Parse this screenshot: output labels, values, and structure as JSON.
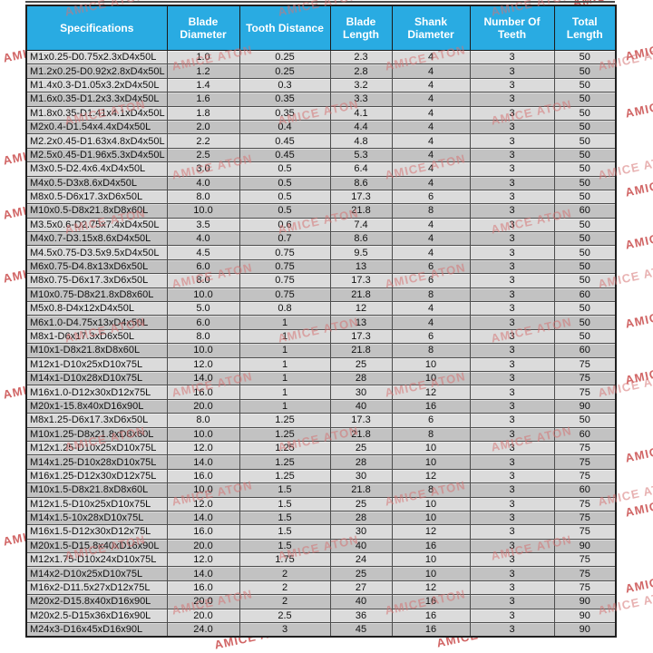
{
  "watermark": {
    "text": "AMICE ATON",
    "light_color": "rgba(214,115,115,0.55)",
    "dark_color": "rgba(198,62,62,0.8)"
  },
  "colors": {
    "header_bg": "#29ABE2",
    "header_text": "#ffffff",
    "row_light": "#dbdbdb",
    "row_dark": "#c2c2c2",
    "border": "#4d4d4d"
  },
  "table": {
    "columns": [
      "Specifications",
      "Blade Diameter",
      "Tooth Distance",
      "Blade Length",
      "Shank Diameter",
      "Number Of Teeth",
      "Total Length"
    ],
    "rows": [
      [
        "M1x0.25-D0.75x2.3xD4x50L",
        "1.0",
        "0.25",
        "2.3",
        "4",
        "3",
        "50"
      ],
      [
        "M1.2x0.25-D0.92x2.8xD4x50L",
        "1.2",
        "0.25",
        "2.8",
        "4",
        "3",
        "50"
      ],
      [
        "M1.4x0.3-D1.05x3.2xD4x50L",
        "1.4",
        "0.3",
        "3.2",
        "4",
        "3",
        "50"
      ],
      [
        "M1.6x0.35-D1.2x3.3xD4x50L",
        "1.6",
        "0.35",
        "3.3",
        "4",
        "3",
        "50"
      ],
      [
        "M1.8x0.35-D1.41x4.1xD4x50L",
        "1.8",
        "0.35",
        "4.1",
        "4",
        "3",
        "50"
      ],
      [
        "M2x0.4-D1.54x4.4xD4x50L",
        "2.0",
        "0.4",
        "4.4",
        "4",
        "3",
        "50"
      ],
      [
        "M2.2x0.45-D1.63x4.8xD4x50L",
        "2.2",
        "0.45",
        "4.8",
        "4",
        "3",
        "50"
      ],
      [
        "M2.5x0.45-D1.96x5.3xD4x50L",
        "2.5",
        "0.45",
        "5.3",
        "4",
        "3",
        "50"
      ],
      [
        "M3x0.5-D2.4x6.4xD4x50L",
        "3.0",
        "0.5",
        "6.4",
        "4",
        "3",
        "50"
      ],
      [
        "M4x0.5-D3x8.6xD4x50L",
        "4.0",
        "0.5",
        "8.6",
        "4",
        "3",
        "50"
      ],
      [
        "M8x0.5-D6x17.3xD6x50L",
        "8.0",
        "0.5",
        "17.3",
        "6",
        "3",
        "50"
      ],
      [
        "M10x0.5-D8x21.8xD8x60L",
        "10.0",
        "0.5",
        "21.8",
        "8",
        "3",
        "60"
      ],
      [
        "M3.5x0.6-D2.75x7.4xD4x50L",
        "3.5",
        "0.6",
        "7.4",
        "4",
        "3",
        "50"
      ],
      [
        "M4x0.7-D3.15x8.6xD4x50L",
        "4.0",
        "0.7",
        "8.6",
        "4",
        "3",
        "50"
      ],
      [
        "M4.5x0.75-D3.5x9.5xD4x50L",
        "4.5",
        "0.75",
        "9.5",
        "4",
        "3",
        "50"
      ],
      [
        "M6x0.75-D4.8x13xD6x50L",
        "6.0",
        "0.75",
        "13",
        "6",
        "3",
        "50"
      ],
      [
        "M8x0.75-D6x17.3xD6x50L",
        "8.0",
        "0.75",
        "17.3",
        "6",
        "3",
        "50"
      ],
      [
        "M10x0.75-D8x21.8xD8x60L",
        "10.0",
        "0.75",
        "21.8",
        "8",
        "3",
        "60"
      ],
      [
        "M5x0.8-D4x12xD4x50L",
        "5.0",
        "0.8",
        "12",
        "4",
        "3",
        "50"
      ],
      [
        "M6x1.0-D4.75x13xD4x50L",
        "6.0",
        "1",
        "13",
        "4",
        "3",
        "50"
      ],
      [
        "M8x1-D6x17.3xD6x50L",
        "8.0",
        "1",
        "17.3",
        "6",
        "3",
        "50"
      ],
      [
        "M10x1-D8x21.8xD8x60L",
        "10.0",
        "1",
        "21.8",
        "8",
        "3",
        "60"
      ],
      [
        "M12x1-D10x25xD10x75L",
        "12.0",
        "1",
        "25",
        "10",
        "3",
        "75"
      ],
      [
        "M14x1-D10x28xD10x75L",
        "14.0",
        "1",
        "28",
        "10",
        "3",
        "75"
      ],
      [
        "M16x1.0-D12x30xD12x75L",
        "16.0",
        "1",
        "30",
        "12",
        "3",
        "75"
      ],
      [
        "M20x1-15.8x40xD16x90L",
        "20.0",
        "1",
        "40",
        "16",
        "3",
        "90"
      ],
      [
        "M8x1.25-D6x17.3xD6x50L",
        "8.0",
        "1.25",
        "17.3",
        "6",
        "3",
        "50"
      ],
      [
        "M10x1.25-D8x21.8xD8x60L",
        "10.0",
        "1.25",
        "21.8",
        "8",
        "3",
        "60"
      ],
      [
        "M12x1.25-D10x25xD10x75L",
        "12.0",
        "1.25",
        "25",
        "10",
        "3",
        "75"
      ],
      [
        "M14x1.25-D10x28xD10x75L",
        "14.0",
        "1.25",
        "28",
        "10",
        "3",
        "75"
      ],
      [
        "M16x1.25-D12x30xD12x75L",
        "16.0",
        "1.25",
        "30",
        "12",
        "3",
        "75"
      ],
      [
        "M10x1.5-D8x21.8xD8x60L",
        "10.0",
        "1.5",
        "21.8",
        "8",
        "3",
        "60"
      ],
      [
        "M12x1.5-D10x25xD10x75L",
        "12.0",
        "1.5",
        "25",
        "10",
        "3",
        "75"
      ],
      [
        "M14x1.5-10x28xD10x75L",
        "14.0",
        "1.5",
        "28",
        "10",
        "3",
        "75"
      ],
      [
        "M16x1.5-D12x30xD12x75L",
        "16.0",
        "1.5",
        "30",
        "12",
        "3",
        "75"
      ],
      [
        "M20x1.5-D15.8x40xD16x90L",
        "20.0",
        "1.5",
        "40",
        "16",
        "3",
        "90"
      ],
      [
        "M12x1.75-D10x24xD10x75L",
        "12.0",
        "1.75",
        "24",
        "10",
        "3",
        "75"
      ],
      [
        "M14x2-D10x25xD10x75L",
        "14.0",
        "2",
        "25",
        "10",
        "3",
        "75"
      ],
      [
        "M16x2-D11.5x27xD12x75L",
        "16.0",
        "2",
        "27",
        "12",
        "3",
        "75"
      ],
      [
        "M20x2-D15.8x40xD16x90L",
        "20.0",
        "2",
        "40",
        "16",
        "3",
        "90"
      ],
      [
        "M20x2.5-D15x36xD16x90L",
        "20.0",
        "2.5",
        "36",
        "16",
        "3",
        "90"
      ],
      [
        "M24x3-D16x45xD16x90L",
        "24.0",
        "3",
        "45",
        "16",
        "3",
        "90"
      ]
    ]
  }
}
